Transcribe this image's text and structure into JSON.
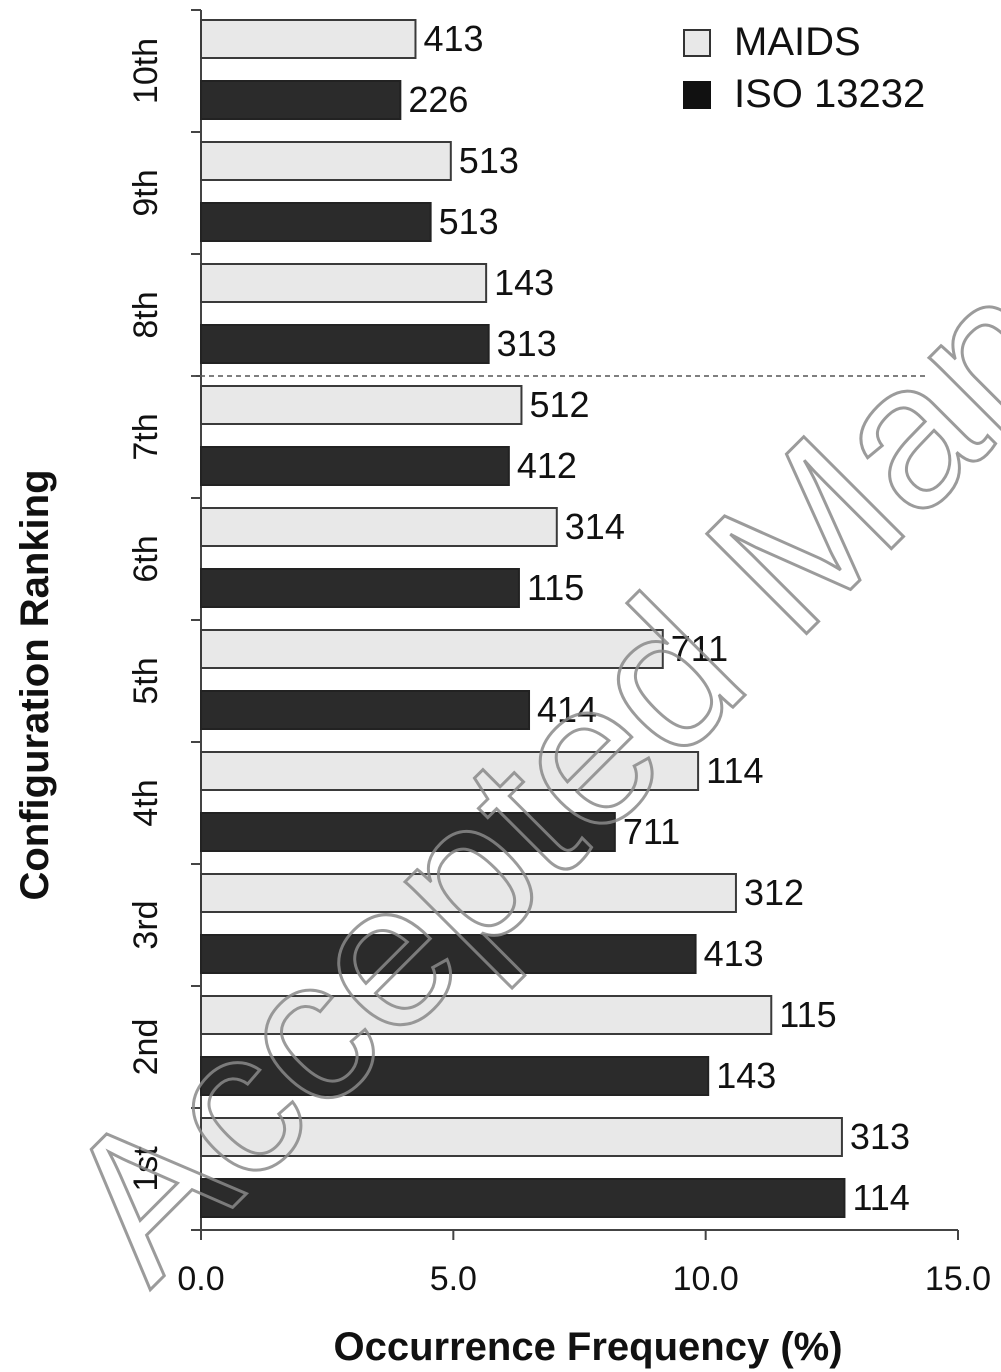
{
  "chart_data": {
    "type": "bar",
    "orientation": "horizontal",
    "xlabel": "Occurrence Frequency (%)",
    "ylabel": "Configuration Ranking",
    "xlim": [
      0,
      15
    ],
    "xticks": [
      "0.0",
      "5.0",
      "10.0",
      "15.0"
    ],
    "categories": [
      "10th",
      "9th",
      "8th",
      "7th",
      "6th",
      "5th",
      "4th",
      "3rd",
      "2nd",
      "1st"
    ],
    "series": [
      {
        "name": "MAIDS",
        "color": "#e8e8e8",
        "values": [
          4.25,
          4.95,
          5.65,
          6.35,
          7.05,
          9.15,
          9.85,
          10.6,
          11.3,
          12.7
        ],
        "labels": [
          "413",
          "513",
          "143",
          "512",
          "314",
          "711",
          "114",
          "312",
          "115",
          "313"
        ]
      },
      {
        "name": "ISO 13232",
        "color": "#2b2b2b",
        "values": [
          3.95,
          4.55,
          5.7,
          6.1,
          6.3,
          6.5,
          8.2,
          9.8,
          10.05,
          12.75
        ],
        "labels": [
          "226",
          "513",
          "313",
          "412",
          "115",
          "414",
          "711",
          "413",
          "143",
          "114"
        ]
      }
    ],
    "reference_line": {
      "after_category": "8th",
      "style": "dashed"
    },
    "grid": false,
    "legend": {
      "position": "top-right"
    }
  },
  "watermark": {
    "text": "Accepted Manuscript",
    "color": "#8a8a8a"
  }
}
